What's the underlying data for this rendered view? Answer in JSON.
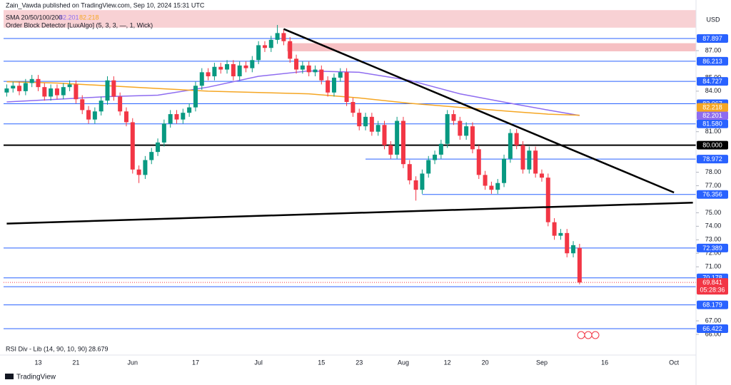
{
  "chart_data": {
    "type": "candlestick",
    "title": "Zain_Vawda published on TradingView.com, Sep 10, 2024 15:31 UTC",
    "currency": "USD",
    "watermark": "TradingView",
    "categories": [
      null,
      null,
      null,
      null,
      null,
      "13",
      null,
      null,
      null,
      null,
      null,
      "21",
      null,
      null,
      null,
      null,
      null,
      null,
      null,
      null,
      "Jun",
      null,
      null,
      null,
      null,
      null,
      null,
      null,
      null,
      null,
      "17",
      null,
      null,
      null,
      null,
      null,
      null,
      null,
      null,
      null,
      "Jul",
      null,
      null,
      null,
      null,
      null,
      null,
      null,
      null,
      null,
      "15",
      null,
      null,
      null,
      null,
      null,
      "23",
      null,
      null,
      null,
      null,
      null,
      null,
      "Aug",
      null,
      null,
      null,
      null,
      null,
      null,
      "12",
      null,
      null,
      null,
      null,
      null,
      "20",
      null,
      null,
      null,
      null,
      null,
      null,
      null,
      null,
      "Sep",
      null,
      null,
      null,
      null,
      null,
      null,
      null,
      null,
      null,
      "16",
      null,
      null,
      null,
      null,
      null,
      null,
      null,
      null,
      null,
      null,
      "Oct",
      null,
      null,
      null
    ],
    "open": [
      83.9,
      84.2,
      84.4,
      84.0,
      84.6,
      84.9,
      84.3,
      83.6,
      84.2,
      83.7,
      84.3,
      84.5,
      83.4,
      82.6,
      81.9,
      82.5,
      83.3,
      84.8,
      83.6,
      82.5,
      81.7,
      78.2,
      77.8,
      78.9,
      79.5,
      80.2,
      81.6,
      82.3,
      81.9,
      82.4,
      82.8,
      84.4,
      85.4,
      85.1,
      85.8,
      85.6,
      86.0,
      85.1,
      85.9,
      85.7,
      86.3,
      87.4,
      87.2,
      87.8,
      88.3,
      87.7,
      86.4,
      85.6,
      85.9,
      85.4,
      85.6,
      84.8,
      83.9,
      85.0,
      85.4,
      83.2,
      82.4,
      81.4,
      82.1,
      81.0,
      81.5,
      80.0,
      79.3,
      81.8,
      78.6,
      77.4,
      76.7,
      77.9,
      78.9,
      79.3,
      80.1,
      82.3,
      81.8,
      80.7,
      81.4,
      79.7,
      77.8,
      77.0,
      76.7,
      77.2,
      79.0,
      80.9,
      80.0,
      78.2,
      79.6,
      77.9,
      77.6,
      74.3,
      73.3,
      73.5,
      72.0,
      72.4,
      null,
      null,
      null,
      null,
      null,
      null,
      null,
      null,
      null,
      null,
      null,
      null,
      null,
      null,
      null,
      null,
      null,
      null
    ],
    "high": [
      84.5,
      84.7,
      84.7,
      84.9,
      85.2,
      85.2,
      84.6,
      84.5,
      84.5,
      84.6,
      84.8,
      84.8,
      83.7,
      82.9,
      82.8,
      83.6,
      85.1,
      85.1,
      83.9,
      82.8,
      82.0,
      78.5,
      79.2,
      79.8,
      80.5,
      81.9,
      82.6,
      82.6,
      82.7,
      83.1,
      84.7,
      85.7,
      85.7,
      86.1,
      86.1,
      86.3,
      86.3,
      86.2,
      86.2,
      86.6,
      87.7,
      87.7,
      88.1,
      88.9,
      88.6,
      88.0,
      86.7,
      86.2,
      86.2,
      85.9,
      85.9,
      85.1,
      85.3,
      85.7,
      85.7,
      83.5,
      82.7,
      82.4,
      82.4,
      81.8,
      81.8,
      80.3,
      82.1,
      82.1,
      78.9,
      77.7,
      78.2,
      79.2,
      79.6,
      80.4,
      82.6,
      82.6,
      82.1,
      81.7,
      81.7,
      80.0,
      78.1,
      77.3,
      77.5,
      79.3,
      81.2,
      81.2,
      80.3,
      79.9,
      79.9,
      78.2,
      77.9,
      74.6,
      73.8,
      73.8,
      72.9,
      72.7,
      null,
      null,
      null,
      null,
      null,
      null,
      null,
      null,
      null,
      null,
      null,
      null,
      null,
      null,
      null,
      null,
      null,
      null
    ],
    "low": [
      83.6,
      83.9,
      83.7,
      83.7,
      84.3,
      84.0,
      83.3,
      83.3,
      83.4,
      83.4,
      84.0,
      83.1,
      82.3,
      81.6,
      81.6,
      82.2,
      83.0,
      83.3,
      82.2,
      81.4,
      77.9,
      77.2,
      77.5,
      78.6,
      79.2,
      79.9,
      81.3,
      81.6,
      81.6,
      82.1,
      82.5,
      84.1,
      84.8,
      84.8,
      85.3,
      85.3,
      84.8,
      84.8,
      85.4,
      85.4,
      86.0,
      86.9,
      86.9,
      87.5,
      87.4,
      86.1,
      85.3,
      85.3,
      85.1,
      85.1,
      84.5,
      83.6,
      83.6,
      84.7,
      82.9,
      82.1,
      81.1,
      81.1,
      80.7,
      80.7,
      79.7,
      79.0,
      79.0,
      78.3,
      77.1,
      75.9,
      76.4,
      77.6,
      78.6,
      79.0,
      79.8,
      81.5,
      80.4,
      80.4,
      79.4,
      77.5,
      76.7,
      76.4,
      76.4,
      76.9,
      78.7,
      79.7,
      77.9,
      77.9,
      77.6,
      77.3,
      74.0,
      73.0,
      73.0,
      71.7,
      71.7,
      69.7,
      null,
      null,
      null,
      null,
      null,
      null,
      null,
      null,
      null,
      null,
      null,
      null,
      null,
      null,
      null,
      null,
      null,
      null
    ],
    "close": [
      84.2,
      84.4,
      84.0,
      84.6,
      84.9,
      84.3,
      83.6,
      84.2,
      83.7,
      84.3,
      84.5,
      83.4,
      82.6,
      81.9,
      82.5,
      83.3,
      84.8,
      83.6,
      82.5,
      81.7,
      78.2,
      77.8,
      78.9,
      79.5,
      80.2,
      81.6,
      82.3,
      81.9,
      82.4,
      82.8,
      84.4,
      85.4,
      85.1,
      85.8,
      85.6,
      86.0,
      85.1,
      85.9,
      85.7,
      86.3,
      87.4,
      87.2,
      87.8,
      88.3,
      87.7,
      86.4,
      85.6,
      85.9,
      85.4,
      85.6,
      84.8,
      83.9,
      85.0,
      85.4,
      83.2,
      82.4,
      81.4,
      82.1,
      81.0,
      81.5,
      80.0,
      79.3,
      81.8,
      78.6,
      77.4,
      76.7,
      77.9,
      78.9,
      79.3,
      80.1,
      82.3,
      81.8,
      80.7,
      81.4,
      79.7,
      77.8,
      77.0,
      76.7,
      77.2,
      79.0,
      80.9,
      80.0,
      78.2,
      79.6,
      77.9,
      77.6,
      74.3,
      73.3,
      73.5,
      72.0,
      72.6,
      69.841,
      null,
      null,
      null,
      null,
      null,
      null,
      null,
      null,
      null,
      null,
      null,
      null,
      null,
      null,
      null,
      null,
      null,
      null
    ],
    "up_color": "#089981",
    "down_color": "#f23645",
    "ylim": [
      64.52,
      90.22
    ],
    "yticks": [
      {
        "value": 66,
        "label": "66.00"
      },
      {
        "value": 67,
        "label": "67.00"
      },
      {
        "value": 71,
        "label": "71.00"
      },
      {
        "value": 72,
        "label": "72.00"
      },
      {
        "value": 73,
        "label": "73.00"
      },
      {
        "value": 74,
        "label": "74.00"
      },
      {
        "value": 75,
        "label": "75.00"
      },
      {
        "value": 77,
        "label": "77.00"
      },
      {
        "value": 78,
        "label": "78.00"
      },
      {
        "value": 81,
        "label": "81.00"
      },
      {
        "value": 84,
        "label": "84.00"
      },
      {
        "value": 85,
        "label": "85.00"
      },
      {
        "value": 87,
        "label": "87.00"
      }
    ],
    "zones": [
      {
        "x": [
          0,
          109
        ],
        "values": [
          90.0,
          88.7
        ],
        "color": "#f7c9cc"
      },
      {
        "x": [
          45,
          109
        ],
        "values": [
          87.55,
          86.95
        ],
        "color": "#f5b5b9"
      }
    ],
    "indicators": {
      "label": "SMA 20/50/100/200",
      "lines": [
        {
          "color": "#8e6cf0",
          "x": [
            0,
            8,
            16,
            24,
            32,
            40,
            48,
            56,
            64,
            72,
            80,
            86,
            91
          ],
          "values": [
            83.2,
            83.4,
            83.6,
            83.7,
            84.3,
            85.1,
            85.5,
            85.4,
            84.8,
            83.8,
            83.1,
            82.6,
            82.201
          ]
        },
        {
          "color": "#f5a623",
          "x": [
            0,
            8,
            16,
            24,
            32,
            40,
            48,
            56,
            64,
            72,
            80,
            86,
            91
          ],
          "values": [
            84.7,
            84.6,
            84.4,
            84.2,
            84.0,
            83.9,
            83.8,
            83.5,
            83.1,
            82.8,
            82.5,
            82.3,
            82.218
          ]
        }
      ]
    },
    "order_block_label": "Order Block Detector [LuxAlgo] (5, 3, 3, —, 1, Wick)",
    "levels": [
      {
        "value": 87.897,
        "color": "#2962ff"
      },
      {
        "value": 86.213,
        "color": "#2962ff"
      },
      {
        "value": 84.727,
        "color": "#2962ff"
      },
      {
        "value": 83.067,
        "color": "#2962ff"
      },
      {
        "value": 81.58,
        "label": "81.580",
        "color": "#2962ff"
      },
      {
        "value": 80,
        "label": "80.000",
        "color": "#000000"
      },
      {
        "value": 78.972,
        "color": "#2962ff",
        "from": 57
      },
      {
        "value": 76.356,
        "color": "#2962ff",
        "from": 66
      },
      {
        "value": 72.389,
        "color": "#2962ff"
      },
      {
        "value": 70.178,
        "color": "#2962ff"
      },
      {
        "value": 69.526,
        "color": "#2962ff"
      },
      {
        "value": 68.179,
        "color": "#2962ff"
      },
      {
        "value": 66.422,
        "color": "#2962ff"
      }
    ],
    "trendlines": [
      {
        "x": [
          44,
          106
        ],
        "values": [
          88.6,
          76.5
        ],
        "color": "#000000"
      },
      {
        "x": [
          0,
          109
        ],
        "values": [
          74.2,
          75.75
        ],
        "color": "#000000"
      }
    ],
    "last_price": {
      "value": 69.841,
      "countdown": "05:28:36",
      "color": "#f23645"
    },
    "rsi": {
      "label": "RSI Div - Lib (14, 90, 10, 90)",
      "value": 28.679
    }
  }
}
